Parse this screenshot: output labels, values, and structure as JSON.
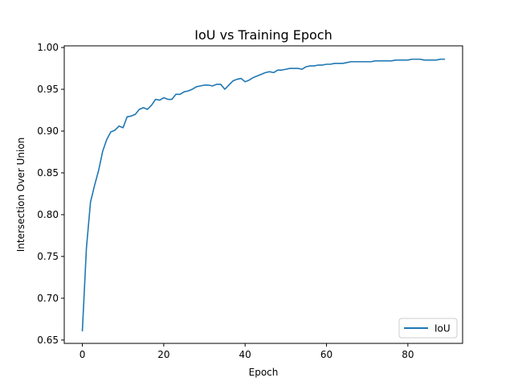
{
  "chart_data": {
    "type": "line",
    "title": "IoU vs Training Epoch",
    "xlabel": "Epoch",
    "ylabel": "Intersection Over Union",
    "xlim": [
      -4.45,
      93.45
    ],
    "ylim": [
      0.646,
      1.002
    ],
    "xticks": [
      0,
      20,
      40,
      60,
      80
    ],
    "yticks": [
      0.65,
      0.7,
      0.75,
      0.8,
      0.85,
      0.9,
      0.95,
      1.0
    ],
    "grid": false,
    "legend_position": "lower-right",
    "series": [
      {
        "name": "IoU",
        "color": "#1f77b4",
        "x": [
          0,
          1,
          2,
          3,
          4,
          5,
          6,
          7,
          8,
          9,
          10,
          11,
          12,
          13,
          14,
          15,
          16,
          17,
          18,
          19,
          20,
          21,
          22,
          23,
          24,
          25,
          26,
          27,
          28,
          29,
          30,
          31,
          32,
          33,
          34,
          35,
          36,
          37,
          38,
          39,
          40,
          41,
          42,
          43,
          44,
          45,
          46,
          47,
          48,
          49,
          50,
          51,
          52,
          53,
          54,
          55,
          56,
          57,
          58,
          59,
          60,
          61,
          62,
          63,
          64,
          65,
          66,
          67,
          68,
          69,
          70,
          71,
          72,
          73,
          74,
          75,
          76,
          77,
          78,
          79,
          80,
          81,
          82,
          83,
          84,
          85,
          86,
          87,
          88,
          89
        ],
        "y": [
          0.661,
          0.76,
          0.815,
          0.835,
          0.853,
          0.876,
          0.89,
          0.899,
          0.901,
          0.906,
          0.904,
          0.917,
          0.918,
          0.92,
          0.926,
          0.928,
          0.926,
          0.931,
          0.938,
          0.937,
          0.94,
          0.938,
          0.938,
          0.944,
          0.944,
          0.947,
          0.948,
          0.95,
          0.953,
          0.954,
          0.955,
          0.955,
          0.954,
          0.956,
          0.956,
          0.95,
          0.955,
          0.96,
          0.962,
          0.963,
          0.959,
          0.961,
          0.964,
          0.966,
          0.968,
          0.97,
          0.971,
          0.97,
          0.973,
          0.973,
          0.974,
          0.975,
          0.975,
          0.975,
          0.974,
          0.977,
          0.978,
          0.978,
          0.979,
          0.979,
          0.98,
          0.98,
          0.981,
          0.981,
          0.981,
          0.982,
          0.983,
          0.983,
          0.983,
          0.983,
          0.983,
          0.983,
          0.984,
          0.984,
          0.984,
          0.984,
          0.984,
          0.985,
          0.985,
          0.985,
          0.985,
          0.986,
          0.986,
          0.986,
          0.985,
          0.985,
          0.985,
          0.985,
          0.986,
          0.986
        ]
      }
    ]
  }
}
